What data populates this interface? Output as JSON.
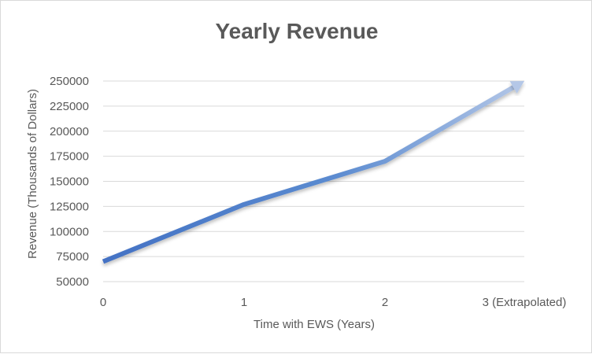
{
  "chart_data": {
    "type": "line",
    "title": "Yearly Revenue",
    "xlabel": "Time with EWS (Years)",
    "ylabel": "Revenue (Thousands of Dollars)",
    "categories": [
      "0",
      "1",
      "2",
      "3 (Extrapolated)"
    ],
    "values": [
      70000,
      127000,
      170000,
      250000
    ],
    "ylim": [
      50000,
      250000
    ],
    "yticks": [
      50000,
      75000,
      100000,
      125000,
      150000,
      175000,
      200000,
      225000,
      250000
    ],
    "grid": true,
    "legend": "none",
    "final_segment_style": "arrow",
    "colors": {
      "line_start": "#4472c4",
      "line_end": "#b4c7e7",
      "gridline": "#d9d9d9",
      "text": "#595959",
      "border": "#d9d9d9"
    }
  }
}
